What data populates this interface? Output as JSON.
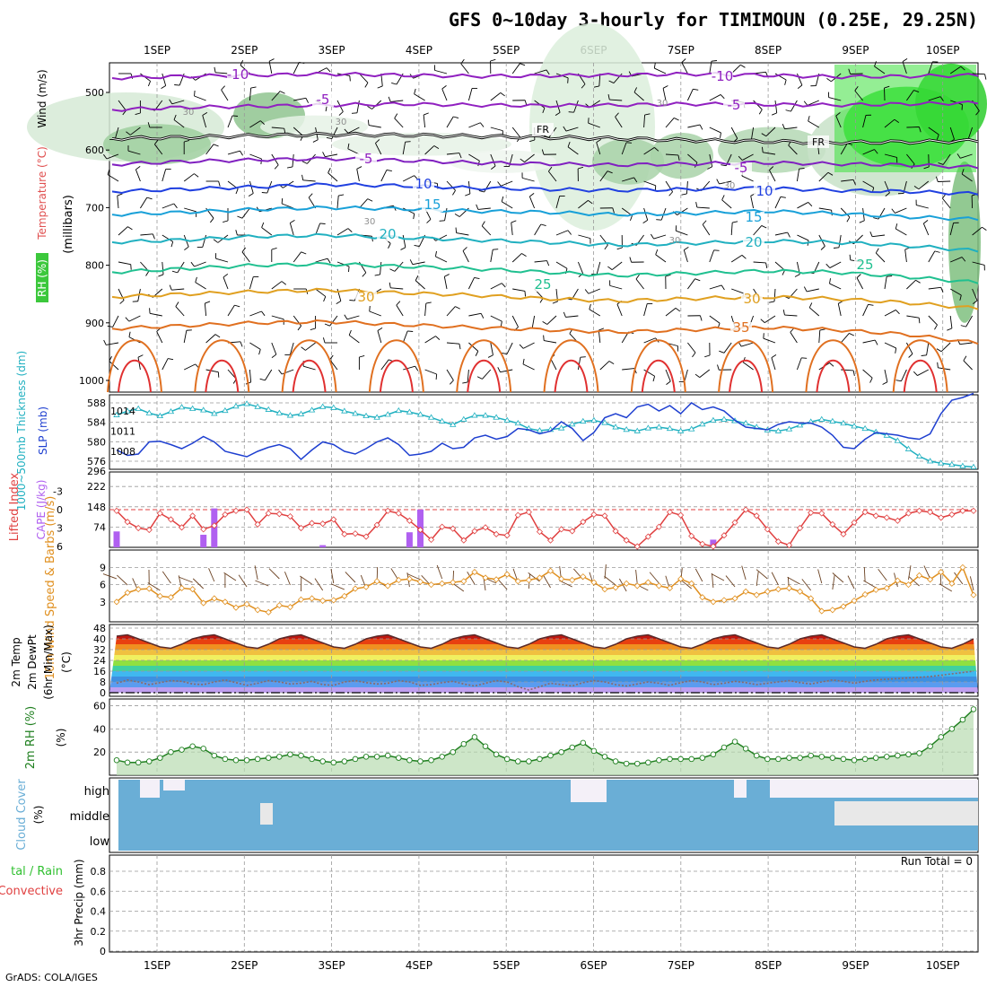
{
  "title": "GFS 0~10day 3-hourly for TIMIMOUN (0.25E, 29.25N)",
  "credit": "GrADS: COLA/IGES",
  "colors": {
    "rh": "#3cc83c",
    "temp": "#e05050",
    "wind": "#000000",
    "cyan": "#20b0c0",
    "slp": "#1e3fd0",
    "lifted": "#e04040",
    "cape": "#b060f0",
    "wind10": "#e09020",
    "rh2m": "#208020",
    "cloud": "#6aaed6"
  },
  "chart_data": {
    "type": "meteogram",
    "days": [
      "1SEP",
      "2SEP",
      "3SEP",
      "4SEP",
      "5SEP",
      "6SEP",
      "7SEP",
      "8SEP",
      "9SEP",
      "10SEP"
    ],
    "panels": {
      "upper_air": {
        "ylabel_parts": [
          "RH (%)",
          "Temperature (°C)",
          "Wind (m/s)"
        ],
        "ylabel_right": "(millibars)",
        "yticks": [
          "500",
          "600",
          "700",
          "800",
          "900",
          "1000"
        ],
        "contour_labels": [
          "-10",
          "-10",
          "-5",
          "-5",
          "-5",
          "-5",
          "FR",
          "FR",
          "10",
          "10",
          "15",
          "15",
          "20",
          "20",
          "25",
          "25",
          "30",
          "30",
          "35",
          "30",
          "30",
          "30",
          "30",
          "30",
          "30"
        ],
        "isotherms": [
          {
            "label": "-10",
            "p": [
              475,
              472,
              470,
              468,
              470,
              472,
              471,
              470,
              468,
              470,
              473,
              472,
              470
            ]
          },
          {
            "label": "-5",
            "p": [
              530,
              526,
              524,
              522,
              520,
              522,
              523,
              522,
              520,
              521,
              522,
              520,
              518
            ]
          },
          {
            "label": "FR",
            "p": [
              580,
              578,
              575,
              573,
              574,
              576,
              578,
              580,
              583,
              585,
              587,
              586,
              584
            ]
          },
          {
            "label": "5",
            "p": [
              625,
              620,
              617,
              615,
              618,
              622,
              624,
              626,
              624,
              622,
              624,
              626,
              630
            ]
          },
          {
            "label": "10",
            "p": [
              672,
              668,
              664,
              660,
              662,
              666,
              668,
              670,
              668,
              666,
              670,
              672,
              676
            ]
          },
          {
            "label": "15",
            "p": [
              712,
              708,
              703,
              700,
              702,
              706,
              708,
              712,
              710,
              706,
              710,
              716,
              720
            ]
          },
          {
            "label": "20",
            "p": [
              760,
              756,
              750,
              748,
              752,
              756,
              760,
              765,
              762,
              758,
              760,
              766,
              775
            ]
          },
          {
            "label": "25",
            "p": [
              812,
              806,
              800,
              798,
              802,
              806,
              812,
              818,
              814,
              810,
              812,
              820,
              830
            ]
          },
          {
            "label": "30",
            "p": [
              855,
              850,
              846,
              843,
              848,
              852,
              858,
              862,
              858,
              855,
              858,
              865,
              875
            ]
          },
          {
            "label": "35",
            "p": [
              910,
              905,
              900,
              898,
              903,
              908,
              912,
              916,
              912,
              908,
              912,
              920,
              935
            ]
          }
        ]
      },
      "thickness_slp": {
        "ylabel_left": "1000~500mb Thickness (dm)",
        "ylabel_right": "SLP (mb)",
        "left_ticks": [
          "588",
          "584",
          "580",
          "576"
        ],
        "right_ticks": [
          "1014",
          "1011",
          "1008"
        ],
        "thickness": [
          585.5,
          586.3,
          586.8,
          585.9,
          585.3,
          586.2,
          587.1,
          586.8,
          586.5,
          585.8,
          586.4,
          587.3,
          587.8,
          587.2,
          586.6,
          585.9,
          585.4,
          585.7,
          586.5,
          587.2,
          587.0,
          586.3,
          585.8,
          585.3,
          585.0,
          585.6,
          586.4,
          586.1,
          585.6,
          585.0,
          584.2,
          583.5,
          584.6,
          585.4,
          585.4,
          585.0,
          584.4,
          583.8,
          582.7,
          582.3,
          582.5,
          582.8,
          583.6,
          584.2,
          584.4,
          583.9,
          583.0,
          582.5,
          582.2,
          582.8,
          583.0,
          582.7,
          582.2,
          582.6,
          583.6,
          584.4,
          584.6,
          584.3,
          583.8,
          583.0,
          582.4,
          582.2,
          582.6,
          583.4,
          584.1,
          584.6,
          584.2,
          583.8,
          583.2,
          582.7,
          582.0,
          581.3,
          580.2,
          578.5,
          577.0,
          576.0,
          575.6,
          575.3,
          575.0,
          574.8
        ],
        "slp": [
          1008.2,
          1007.4,
          1007.6,
          1009.4,
          1009.5,
          1009.0,
          1008.4,
          1009.2,
          1010.2,
          1009.4,
          1008.0,
          1007.6,
          1007.2,
          1008.0,
          1008.6,
          1009.0,
          1008.4,
          1006.8,
          1008.2,
          1009.4,
          1009.0,
          1008.0,
          1007.6,
          1008.4,
          1009.4,
          1010.0,
          1009.0,
          1007.4,
          1007.6,
          1008.0,
          1009.2,
          1008.4,
          1008.6,
          1010.0,
          1010.4,
          1009.8,
          1010.2,
          1011.4,
          1011.2,
          1010.6,
          1011.0,
          1012.4,
          1011.4,
          1009.6,
          1010.8,
          1013.0,
          1013.6,
          1013.0,
          1014.6,
          1015.0,
          1014.0,
          1014.8,
          1013.6,
          1015.2,
          1014.2,
          1014.6,
          1014.0,
          1012.6,
          1011.6,
          1011.4,
          1011.2,
          1012.0,
          1012.4,
          1012.2,
          1012.2,
          1011.6,
          1010.4,
          1008.6,
          1008.4,
          1009.8,
          1010.8,
          1010.6,
          1010.4,
          1010.0,
          1009.8,
          1010.6,
          1013.6,
          1015.6,
          1016.0,
          1016.6
        ]
      },
      "cape_li": {
        "ylabel_left": "Lifted Index",
        "ylabel_right": "CAPE (J/kg)",
        "li_ticks": [
          "-3",
          "0",
          "3",
          "6"
        ],
        "cape_ticks": [
          "222",
          "148",
          "74"
        ],
        "lifted_index": [
          0.2,
          2.0,
          3.0,
          3.3,
          0.6,
          1.6,
          2.9,
          1.0,
          3.2,
          2.6,
          0.8,
          0.2,
          0.0,
          2.4,
          0.6,
          0.7,
          1.1,
          3.0,
          2.2,
          2.3,
          1.6,
          4.0,
          3.9,
          4.4,
          2.5,
          0.2,
          0.6,
          1.8,
          3.3,
          4.9,
          2.8,
          3.1,
          5.0,
          3.5,
          2.9,
          4.0,
          4.2,
          0.9,
          0.4,
          3.6,
          5.0,
          3.2,
          3.5,
          2.0,
          0.8,
          1.0,
          3.5,
          5.0,
          6.4,
          4.4,
          2.8,
          0.4,
          0.9,
          4.3,
          5.6,
          6.6,
          4.2,
          2.1,
          0.0,
          1.0,
          3.2,
          5.2,
          5.8,
          3.0,
          0.5,
          0.6,
          2.4,
          4.0,
          2.1,
          0.4,
          1.0,
          1.3,
          1.8,
          0.6,
          0.2,
          0.4,
          1.3,
          0.8,
          0.2,
          0.2
        ],
        "cape": [
          58,
          0,
          0,
          0,
          0,
          0,
          0,
          0,
          46,
          142,
          0,
          0,
          0,
          0,
          0,
          0,
          0,
          0,
          0,
          8,
          0,
          0,
          0,
          0,
          0,
          0,
          0,
          55,
          138,
          0,
          0,
          0,
          0,
          0,
          0,
          0,
          0,
          0,
          0,
          0,
          0,
          0,
          0,
          0,
          0,
          0,
          0,
          0,
          0,
          0,
          0,
          0,
          0,
          0,
          0,
          28,
          0,
          0,
          0,
          0,
          0,
          0,
          0,
          0,
          0,
          0,
          0,
          0,
          0,
          0,
          0,
          0,
          0,
          0,
          0,
          0,
          0,
          0,
          0,
          0
        ]
      },
      "wind10m": {
        "ylabel": "10m Wind Speed & Barbs (m/s)",
        "yticks": [
          "9",
          "6",
          "3"
        ],
        "speed": [
          3.0,
          4.6,
          5.2,
          5.3,
          4.0,
          3.8,
          5.4,
          5.2,
          2.8,
          3.6,
          3.0,
          2.0,
          2.6,
          1.6,
          1.2,
          2.4,
          2.1,
          3.4,
          3.6,
          3.2,
          3.3,
          4.0,
          5.3,
          5.6,
          6.6,
          5.8,
          6.8,
          7.0,
          6.5,
          6.0,
          6.2,
          6.4,
          6.6,
          8.2,
          7.2,
          6.9,
          7.8,
          6.6,
          6.8,
          7.2,
          8.4,
          7.0,
          6.8,
          7.4,
          6.4,
          5.2,
          5.5,
          6.2,
          5.8,
          6.4,
          5.8,
          5.4,
          7.0,
          6.2,
          3.8,
          3.0,
          3.3,
          3.6,
          4.8,
          4.2,
          4.8,
          5.2,
          5.4,
          4.8,
          3.6,
          1.4,
          1.6,
          2.2,
          3.2,
          4.3,
          5.1,
          5.4,
          6.7,
          6.0,
          7.6,
          6.9,
          8.2,
          6.2,
          9.0,
          4.2
        ]
      },
      "temp2m": {
        "ylabel": "2m Temp 2m DewPt (6hr Min/Max) (°C)",
        "yticks": [
          "48",
          "40",
          "32",
          "24",
          "16",
          "8",
          "0"
        ],
        "temp": [
          42,
          43,
          40,
          37,
          34,
          33,
          36,
          40,
          42,
          43,
          40,
          37,
          34,
          33,
          36,
          40,
          42,
          43,
          40,
          37,
          34,
          33,
          36,
          40,
          42,
          43,
          40,
          37,
          34,
          33,
          36,
          40,
          42,
          43,
          40,
          37,
          34,
          33,
          36,
          40,
          42,
          43,
          40,
          37,
          34,
          33,
          36,
          40,
          42,
          43,
          40,
          37,
          34,
          33,
          36,
          40,
          42,
          43,
          40,
          37,
          34,
          33,
          36,
          40,
          42,
          43,
          40,
          37,
          34,
          33,
          36,
          40,
          42,
          43,
          40,
          37,
          34,
          33,
          36,
          40
        ],
        "dewpt": [
          7.0,
          9.5,
          8.0,
          6.0,
          7.5,
          9.0,
          8.5,
          6.5,
          6.0,
          8.0,
          9.5,
          7.5,
          5.5,
          7.0,
          9.0,
          8.0,
          6.5,
          7.0,
          8.5,
          6.0,
          5.5,
          8.0,
          9.0,
          7.5,
          6.5,
          7.0,
          9.0,
          8.0,
          5.5,
          6.0,
          7.5,
          8.5,
          6.5,
          5.0,
          7.0,
          9.0,
          8.0,
          4.5,
          2.0,
          4.5,
          7.0,
          6.0,
          5.0,
          7.5,
          9.0,
          8.0,
          6.0,
          5.0,
          6.5,
          8.0,
          7.0,
          5.5,
          7.5,
          9.0,
          8.0,
          6.0,
          7.0,
          8.5,
          7.5,
          6.0,
          7.0,
          8.0,
          9.0,
          7.5,
          6.5,
          8.0,
          9.5,
          8.5,
          7.0,
          8.5,
          9.5,
          10.0,
          10.5,
          11.0,
          11.5,
          12.0,
          13.0,
          14.0,
          15.0,
          16.0
        ],
        "line_value": 0
      },
      "rh2m": {
        "ylabel": "2m RH (%)",
        "yticks": [
          "60",
          "40",
          "20"
        ],
        "rh": [
          13,
          11,
          11,
          12,
          15,
          20,
          22,
          25,
          23,
          17,
          14,
          13,
          13,
          14,
          15,
          16,
          18,
          17,
          14,
          12,
          11,
          12,
          14,
          16,
          16,
          17,
          15,
          13,
          12,
          13,
          16,
          20,
          27,
          33,
          25,
          18,
          14,
          12,
          12,
          14,
          17,
          20,
          24,
          28,
          21,
          16,
          12,
          10,
          10,
          11,
          13,
          14,
          14,
          14,
          15,
          18,
          24,
          29,
          23,
          17,
          14,
          14,
          15,
          15,
          17,
          16,
          15,
          14,
          13,
          14,
          15,
          16,
          17,
          18,
          19,
          25,
          33,
          40,
          48,
          57
        ]
      },
      "cloud": {
        "ylabel": "Cloud Cover (%)",
        "levels": [
          "high",
          "middle",
          "low"
        ]
      },
      "precip": {
        "ylabel_left": "Total / Rain Convective",
        "ylabel_right": "3hr Precip (mm)",
        "yticks": [
          "0.8",
          "0.6",
          "0.4",
          "0.2",
          "0"
        ],
        "run_total": "Run Total = 0",
        "values": []
      }
    }
  }
}
